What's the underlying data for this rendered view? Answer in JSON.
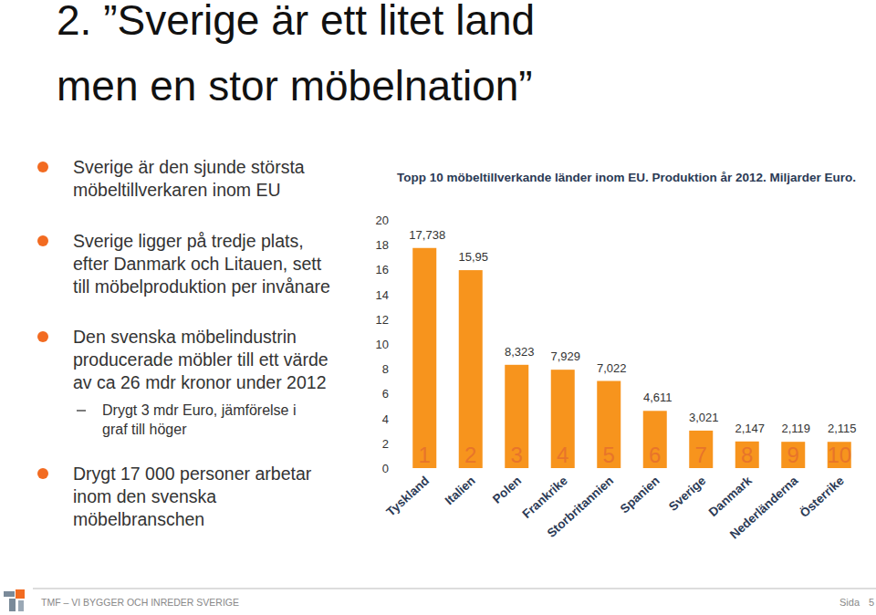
{
  "slide": {
    "title_lines": [
      "2. ”Sverige är ett litet land",
      "men en stor möbelnation”"
    ],
    "bullets": [
      {
        "lines": [
          "Sverige är den sjunde största",
          "möbeltillverkaren inom EU"
        ]
      },
      {
        "lines": [
          "Sverige ligger på tredje plats,",
          "efter Danmark och Litauen, sett",
          "till möbelproduktion per invånare"
        ]
      },
      {
        "lines": [
          "Den svenska möbelindustrin",
          "producerade möbler till ett värde",
          "av ca 26 mdr kronor under 2012"
        ],
        "sub": [
          "Drygt 3 mdr Euro, jämförelse i",
          "graf till höger"
        ]
      },
      {
        "lines": [
          "Drygt 17 000 personer arbetar",
          "inom den svenska",
          "möbelbranschen"
        ]
      }
    ],
    "footer": "TMF – VI BYGGER OCH INREDER SVERIGE",
    "page_label": "Sida",
    "page_number": 5
  },
  "chart_data": {
    "type": "bar",
    "title": "Topp 10 möbeltillverkande länder inom EU. Produktion år 2012. Miljarder  Euro.",
    "categories": [
      "Tyskland",
      "Italien",
      "Polen",
      "Frankrike",
      "Storbritannien",
      "Spanien",
      "Sverige",
      "Danmark",
      "Nederländerna",
      "Österrike"
    ],
    "values": [
      17.738,
      15.95,
      8.323,
      7.929,
      7.022,
      4.611,
      3.021,
      2.147,
      2.119,
      2.115
    ],
    "value_labels": [
      "17,738",
      "15,95",
      "8,323",
      "7,929",
      "7,022",
      "4,611",
      "3,021",
      "2,147",
      "2,119",
      "2,115"
    ],
    "ranks": [
      1,
      2,
      3,
      4,
      5,
      6,
      7,
      8,
      9,
      10
    ],
    "color": "#f7941d",
    "ylim": [
      0,
      20
    ],
    "yticks": [
      0,
      2,
      4,
      6,
      8,
      10,
      12,
      14,
      16,
      18,
      20
    ],
    "grid": false,
    "data_labels": true
  }
}
